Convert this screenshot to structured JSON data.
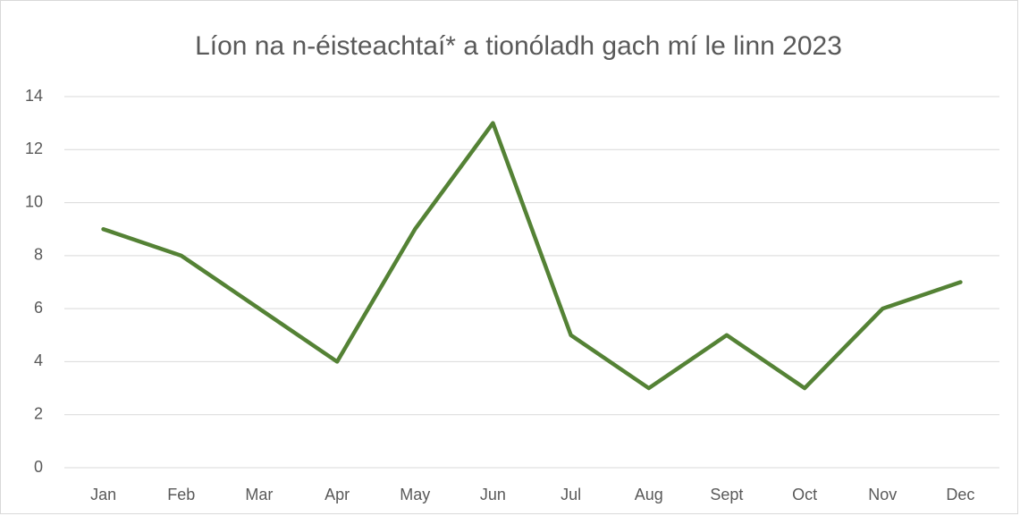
{
  "chart_data": {
    "type": "line",
    "title": "Líon na n-éisteachtaí* a tionóladh gach mí le linn 2023",
    "categories": [
      "Jan",
      "Feb",
      "Mar",
      "Apr",
      "May",
      "Jun",
      "Jul",
      "Aug",
      "Sept",
      "Oct",
      "Nov",
      "Dec"
    ],
    "values": [
      9,
      8,
      6,
      4,
      9,
      13,
      5,
      3,
      5,
      3,
      6,
      7
    ],
    "color": "#548235",
    "ylim": [
      0,
      14
    ],
    "yticks": [
      0,
      2,
      4,
      6,
      8,
      10,
      12,
      14
    ],
    "grid": true
  }
}
